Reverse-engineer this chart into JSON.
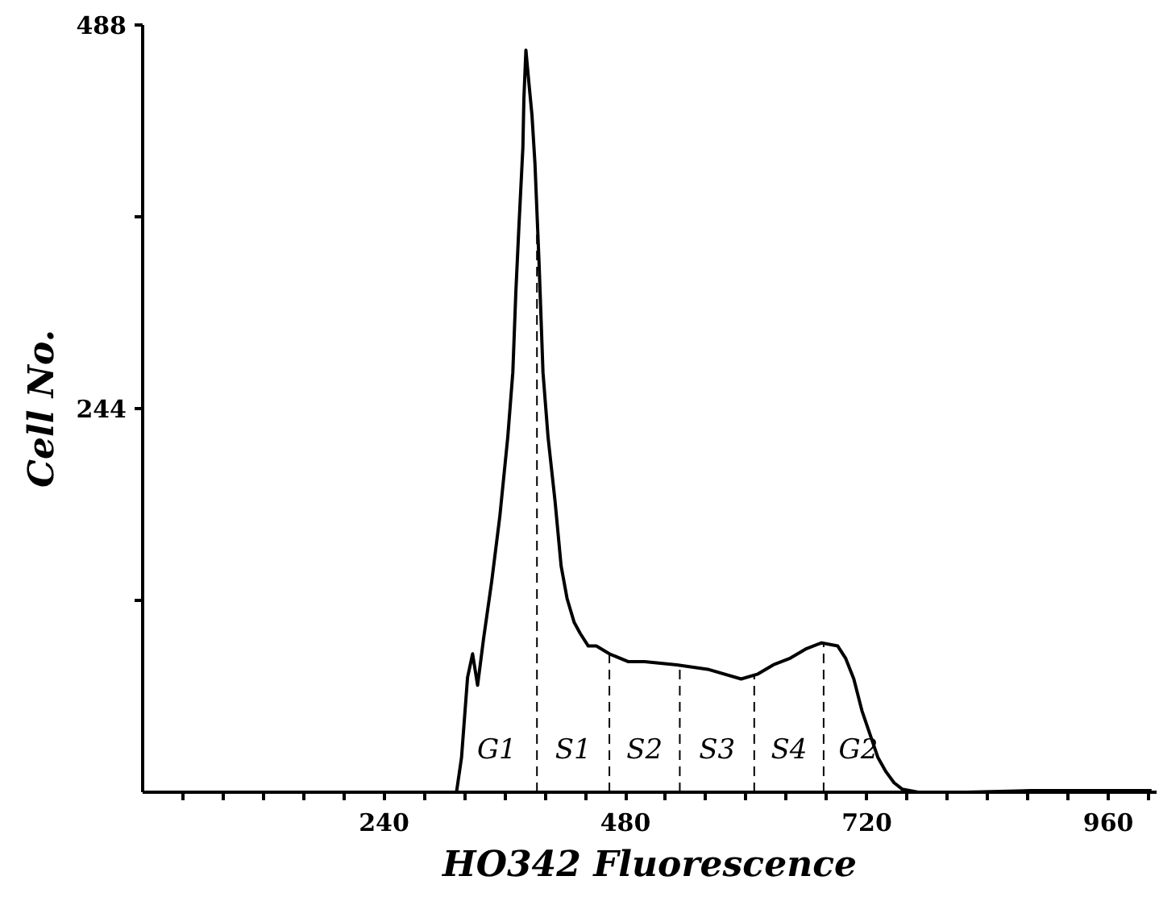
{
  "chart_data": {
    "type": "line",
    "xlabel": "HO342 Fluorescence",
    "ylabel": "Cell No.",
    "xlim": [
      0,
      1008
    ],
    "ylim": [
      0,
      488
    ],
    "xticks": [
      {
        "value": 40,
        "label": null
      },
      {
        "value": 80,
        "label": null
      },
      {
        "value": 120,
        "label": null
      },
      {
        "value": 160,
        "label": null
      },
      {
        "value": 200,
        "label": null
      },
      240,
      {
        "value": 280,
        "label": null
      },
      {
        "value": 320,
        "label": null
      },
      {
        "value": 360,
        "label": null
      },
      {
        "value": 400,
        "label": null
      },
      {
        "value": 440,
        "label": null
      },
      480,
      {
        "value": 520,
        "label": null
      },
      {
        "value": 560,
        "label": null
      },
      {
        "value": 600,
        "label": null
      },
      {
        "value": 640,
        "label": null
      },
      {
        "value": 680,
        "label": null
      },
      720,
      {
        "value": 760,
        "label": null
      },
      {
        "value": 800,
        "label": null
      },
      {
        "value": 840,
        "label": null
      },
      {
        "value": 880,
        "label": null
      },
      {
        "value": 920,
        "label": null
      },
      960,
      {
        "value": 1000,
        "label": null
      }
    ],
    "yticks": [
      {
        "value": 122,
        "label": null
      },
      244,
      {
        "value": 366,
        "label": null
      },
      488
    ],
    "series": [
      {
        "color": "#000000",
        "x": [
          312,
          317,
          323,
          328,
          333,
          339,
          347,
          355,
          363,
          368,
          371,
          374,
          378,
          379,
          381,
          384,
          387,
          390,
          394,
          398,
          403,
          410,
          416,
          422,
          429,
          435,
          443,
          451,
          464,
          483,
          499,
          531,
          563,
          595,
          611,
          627,
          643,
          659,
          675,
          691,
          699,
          707,
          715,
          723,
          731,
          739,
          747,
          755,
          771,
          819,
          883,
          947,
          1003
        ],
        "values": [
          0,
          22,
          73,
          88,
          68,
          98,
          134,
          175,
          226,
          267,
          318,
          359,
          410,
          441,
          472,
          451,
          431,
          400,
          338,
          267,
          226,
          185,
          144,
          123,
          108,
          101,
          93,
          93,
          88,
          83,
          83,
          81,
          78,
          72,
          75,
          81,
          85,
          91,
          95,
          93,
          85,
          72,
          52,
          37,
          22,
          13,
          6,
          2,
          0,
          0,
          1,
          1,
          1
        ]
      }
    ],
    "ref_lines": [
      {
        "axis": "x",
        "value": 392,
        "line_style": "dashed"
      },
      {
        "axis": "x",
        "value": 464,
        "line_style": "dashed"
      },
      {
        "axis": "x",
        "value": 534,
        "line_style": "dashed"
      },
      {
        "axis": "x",
        "value": 608,
        "line_style": "dashed"
      },
      {
        "axis": "x",
        "value": 677,
        "line_style": "dashed"
      }
    ],
    "annotations": [
      "G1",
      "S1",
      "S2",
      "S3",
      "S4",
      "G2"
    ],
    "grid": false,
    "marker": "none",
    "line_style": "solid"
  }
}
